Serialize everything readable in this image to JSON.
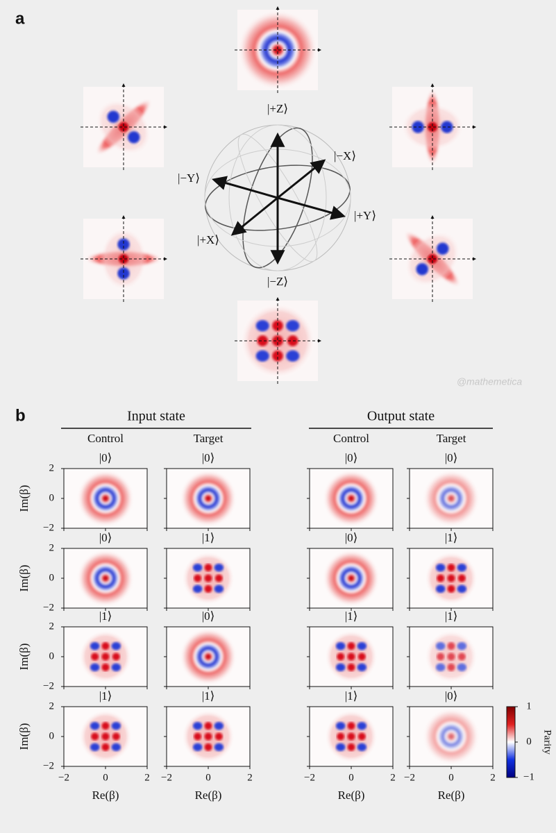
{
  "panel_a": {
    "label": "a",
    "states": [
      "|+Z⟩",
      "|−X⟩",
      "|−Y⟩",
      "|+Y⟩",
      "|+X⟩",
      "|−Z⟩"
    ],
    "watermark": "@mathemetica"
  },
  "panel_b": {
    "label": "b",
    "groups": [
      "Input state",
      "Output state"
    ],
    "columns": [
      "Control",
      "Target",
      "Control",
      "Target"
    ],
    "rows": [
      [
        "|0⟩",
        "|0⟩",
        "|0⟩",
        "|0⟩"
      ],
      [
        "|0⟩",
        "|1⟩",
        "|0⟩",
        "|1⟩"
      ],
      [
        "|1⟩",
        "|0⟩",
        "|1⟩",
        "|1⟩"
      ],
      [
        "|1⟩",
        "|1⟩",
        "|1⟩",
        "|0⟩"
      ]
    ],
    "x_label": "Re(β)",
    "y_label": "Im(β)",
    "xlim": [
      -2,
      2
    ],
    "ylim": [
      -2,
      2
    ],
    "xticks": [
      {
        "value": -2,
        "label": "−2"
      },
      0,
      2
    ],
    "yticks": [
      {
        "value": -2,
        "label": "−2"
      },
      0,
      2
    ],
    "colorbar": {
      "label": "Parity",
      "lim": [
        -1,
        1
      ],
      "ticks": [
        {
          "value": -1,
          "label": "−1"
        },
        0,
        1
      ]
    }
  }
}
